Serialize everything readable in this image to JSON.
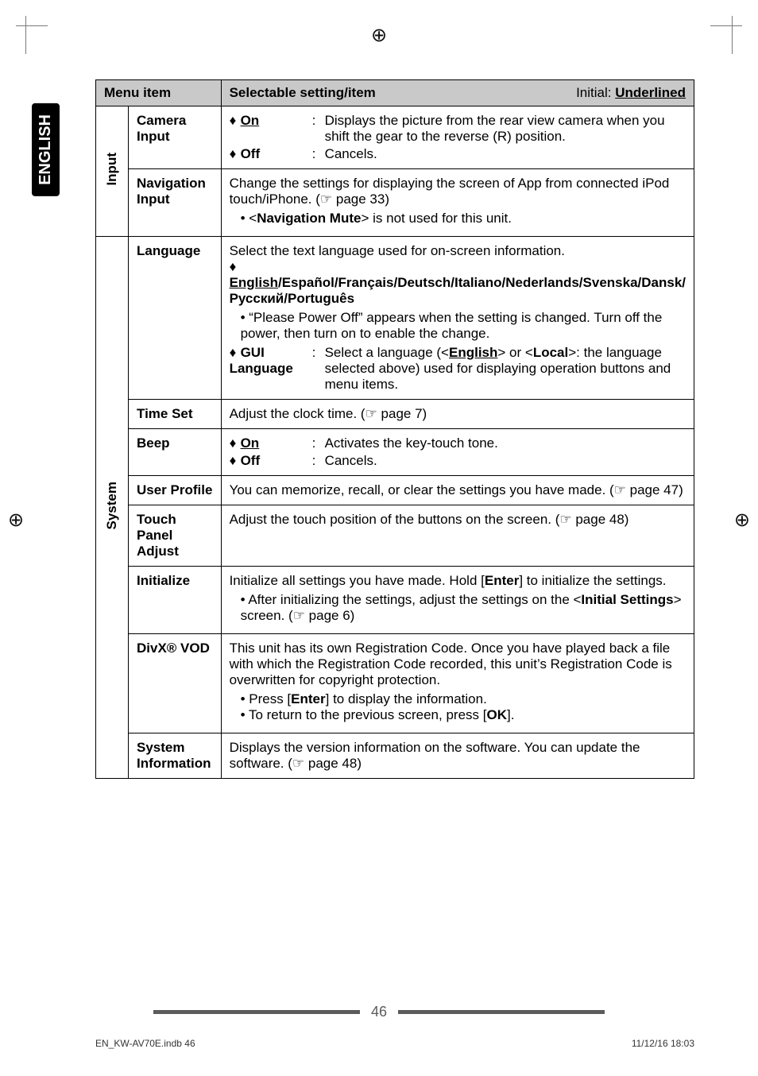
{
  "sideTab": "ENGLISH",
  "header": {
    "col1": "Menu item",
    "col2": "Selectable setting/item",
    "initialLabel": "Initial: ",
    "initialWord": "Underlined"
  },
  "groups": {
    "input": {
      "label": "Input",
      "rows": {
        "camera": {
          "name": "Camera Input",
          "opts": {
            "on": {
              "label": "On",
              "desc": "Displays the picture from the rear view camera when you shift the gear to the reverse (R) position."
            },
            "off": {
              "label": "Off",
              "desc": "Cancels."
            }
          }
        },
        "nav": {
          "name": "Navigation Input",
          "line1": "Change the settings for displaying the screen of App from connected iPod touch/iPhone. (☞ page 33)",
          "bullet1a": "<",
          "bullet1b": "Navigation Mute",
          "bullet1c": "> is not used for this unit."
        }
      }
    },
    "system": {
      "label": "System",
      "rows": {
        "language": {
          "name": "Language",
          "line1": "Select the text language used for on-screen information.",
          "optLine1": "English",
          "optLine1b": "/Español/Français/Deutsch/Italiano/Nederlands/Svenska/Dansk/Русский/Português",
          "bullet1": "“Please Power Off” appears when the setting is changed. Turn off the power, then turn on to enable the change.",
          "gui": {
            "label": "GUI Language",
            "desc1a": "Select a language (<",
            "desc1b": "English",
            "desc1c": "> or <",
            "desc1d": "Local",
            "desc1e": ">: the language selected above) used for displaying operation buttons and menu items."
          }
        },
        "timeset": {
          "name": "Time Set",
          "desc": "Adjust the clock time. (☞ page 7)"
        },
        "beep": {
          "name": "Beep",
          "on": {
            "label": "On",
            "desc": "Activates the key-touch tone."
          },
          "off": {
            "label": "Off",
            "desc": "Cancels."
          }
        },
        "userprofile": {
          "name": "User Profile",
          "desc": "You can memorize, recall, or clear the settings you have made. (☞ page 47)"
        },
        "touchpanel": {
          "name": "Touch Panel Adjust",
          "desc": "Adjust the touch position of the buttons on the screen. (☞ page 48)"
        },
        "initialize": {
          "name": "Initialize",
          "line1a": "Initialize all settings you have made. Hold [",
          "line1b": "Enter",
          "line1c": "] to initialize the settings.",
          "bullet1a": "After initializing the settings, adjust the settings on the <",
          "bullet1b": "Initial Settings",
          "bullet1c": "> screen. (☞ page 6)"
        },
        "divx": {
          "name": "DivX® VOD",
          "line1": "This unit has its own Registration Code. Once you have played back a file with which the Registration Code recorded, this unit’s Registration Code is overwritten for copyright protection.",
          "bullet1a": "Press [",
          "bullet1b": "Enter",
          "bullet1c": "] to display the information.",
          "bullet2a": "To return to the previous screen, press [",
          "bullet2b": "OK",
          "bullet2c": "]."
        },
        "sysinfo": {
          "name": "System Information",
          "desc": "Displays the version information on the software. You can update the software. (☞ page 48)"
        }
      }
    }
  },
  "pageNumber": "46",
  "footer": {
    "left": "EN_KW-AV70E.indb   46",
    "right": "11/12/16   18:03"
  },
  "regMark": "⊕"
}
